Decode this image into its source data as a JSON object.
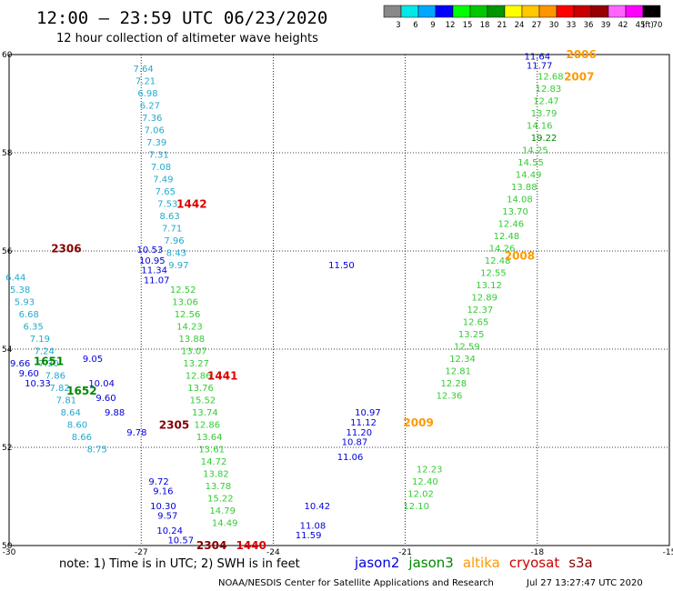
{
  "header": {
    "title": "12:00 – 23:59 UTC 06/23/2020",
    "subtitle": "12 hour collection of altimeter wave heights",
    "unit": "(ft)"
  },
  "colorbar": {
    "colors": [
      "#888888",
      "#00e8e8",
      "#00a8ff",
      "#0000ff",
      "#00ff00",
      "#00c800",
      "#009600",
      "#ffff00",
      "#ffc800",
      "#ff9600",
      "#ff0000",
      "#c80000",
      "#960000",
      "#ff64ff",
      "#ff00ff",
      "#000000"
    ],
    "labels": [
      "3",
      "6",
      "9",
      "12",
      "15",
      "18",
      "21",
      "24",
      "27",
      "30",
      "33",
      "36",
      "39",
      "42",
      "45",
      "70"
    ]
  },
  "footer": {
    "note": "note: 1) Time is in UTC; 2) SWH is in feet",
    "credit": "NOAA/NESDIS Center for Satellite Applications and Research",
    "stamp": "Jul 27 13:27:47 UTC 2020"
  },
  "legend": [
    {
      "label": "jason2",
      "color": "#0000dd"
    },
    {
      "label": "jason3",
      "color": "#008800"
    },
    {
      "label": "altika",
      "color": "#ff9900"
    },
    {
      "label": "cryosat",
      "color": "#cc0000"
    },
    {
      "label": "s3a",
      "color": "#880000"
    }
  ],
  "chart_data": {
    "type": "scatter",
    "title": "12:00 – 23:59 UTC 06/23/2020",
    "xlim": [
      -30,
      -15
    ],
    "ylim": [
      50,
      60
    ],
    "xticks": [
      -30,
      -27,
      -24,
      -21,
      -18,
      -15
    ],
    "yticks": [
      50,
      52,
      54,
      56,
      58,
      60
    ],
    "grid": true,
    "legend_position": "bottom",
    "series": [
      {
        "color": "#0000dd",
        "points": [
          {
            "x": -18.0,
            "y": 59.95,
            "v": "11.64"
          },
          {
            "x": -17.95,
            "y": 59.77,
            "v": "11.77"
          },
          {
            "x": -26.8,
            "y": 56.02,
            "v": "10.53"
          },
          {
            "x": -26.75,
            "y": 55.8,
            "v": "10.95"
          },
          {
            "x": -26.7,
            "y": 55.6,
            "v": "11.34"
          },
          {
            "x": -26.65,
            "y": 55.4,
            "v": "11.07"
          },
          {
            "x": -22.45,
            "y": 55.7,
            "v": "11.50"
          },
          {
            "x": -21.85,
            "y": 52.7,
            "v": "10.97"
          },
          {
            "x": -21.95,
            "y": 52.5,
            "v": "11.12"
          },
          {
            "x": -22.05,
            "y": 52.3,
            "v": "11.20"
          },
          {
            "x": -22.15,
            "y": 52.1,
            "v": "10.87"
          },
          {
            "x": -22.25,
            "y": 51.8,
            "v": "11.06"
          },
          {
            "x": -23.0,
            "y": 50.8,
            "v": "10.42"
          },
          {
            "x": -23.1,
            "y": 50.4,
            "v": "11.08"
          },
          {
            "x": -23.2,
            "y": 50.2,
            "v": "11.59"
          },
          {
            "x": -28.1,
            "y": 53.8,
            "v": "9.05"
          },
          {
            "x": -29.75,
            "y": 53.7,
            "v": "9.66"
          },
          {
            "x": -29.55,
            "y": 53.5,
            "v": "9.60"
          },
          {
            "x": -29.35,
            "y": 53.3,
            "v": "10.33"
          },
          {
            "x": -27.9,
            "y": 53.3,
            "v": "10.04"
          },
          {
            "x": -27.8,
            "y": 53.0,
            "v": "9.60"
          },
          {
            "x": -27.6,
            "y": 52.7,
            "v": "9.88"
          },
          {
            "x": -27.1,
            "y": 52.3,
            "v": "9.78"
          },
          {
            "x": -26.6,
            "y": 51.3,
            "v": "9.72"
          },
          {
            "x": -26.5,
            "y": 51.1,
            "v": "9.16"
          },
          {
            "x": -26.5,
            "y": 50.8,
            "v": "10.30"
          },
          {
            "x": -26.4,
            "y": 50.6,
            "v": "9.57"
          },
          {
            "x": -26.35,
            "y": 50.3,
            "v": "10.24"
          },
          {
            "x": -26.1,
            "y": 50.1,
            "v": "10.57"
          }
        ]
      },
      {
        "color": "#22aacc",
        "points": [
          {
            "x": -26.95,
            "y": 59.7,
            "v": "7.64"
          },
          {
            "x": -26.9,
            "y": 59.45,
            "v": "7.21"
          },
          {
            "x": -26.85,
            "y": 59.2,
            "v": "6.98"
          },
          {
            "x": -26.8,
            "y": 58.95,
            "v": "6.27"
          },
          {
            "x": -26.75,
            "y": 58.7,
            "v": "7.36"
          },
          {
            "x": -26.7,
            "y": 58.45,
            "v": "7.06"
          },
          {
            "x": -26.65,
            "y": 58.2,
            "v": "7.39"
          },
          {
            "x": -26.6,
            "y": 57.95,
            "v": "7.31"
          },
          {
            "x": -26.55,
            "y": 57.7,
            "v": "7.08"
          },
          {
            "x": -26.5,
            "y": 57.45,
            "v": "7.49"
          },
          {
            "x": -26.45,
            "y": 57.2,
            "v": "7.65"
          },
          {
            "x": -26.4,
            "y": 56.95,
            "v": "7.53"
          },
          {
            "x": -26.35,
            "y": 56.7,
            "v": "8.63"
          },
          {
            "x": -26.3,
            "y": 56.45,
            "v": "7.71"
          },
          {
            "x": -26.25,
            "y": 56.2,
            "v": "7.96"
          },
          {
            "x": -26.2,
            "y": 55.95,
            "v": "8.43"
          },
          {
            "x": -26.15,
            "y": 55.7,
            "v": "9.97"
          },
          {
            "x": -29.85,
            "y": 55.45,
            "v": "6.44"
          },
          {
            "x": -29.75,
            "y": 55.2,
            "v": "5.38"
          },
          {
            "x": -29.65,
            "y": 54.95,
            "v": "5.93"
          },
          {
            "x": -29.55,
            "y": 54.7,
            "v": "6.68"
          },
          {
            "x": -29.45,
            "y": 54.45,
            "v": "6.35"
          },
          {
            "x": -29.3,
            "y": 54.2,
            "v": "7.19"
          },
          {
            "x": -29.2,
            "y": 53.95,
            "v": "7.24"
          },
          {
            "x": -29.1,
            "y": 53.7,
            "v": "7.30"
          },
          {
            "x": -28.95,
            "y": 53.45,
            "v": "7.86"
          },
          {
            "x": -28.85,
            "y": 53.2,
            "v": "7.82"
          },
          {
            "x": -28.7,
            "y": 52.95,
            "v": "7.81"
          },
          {
            "x": -28.6,
            "y": 52.7,
            "v": "8.64"
          },
          {
            "x": -28.45,
            "y": 52.45,
            "v": "8.60"
          },
          {
            "x": -28.35,
            "y": 52.2,
            "v": "8.66"
          },
          {
            "x": -28.0,
            "y": 51.95,
            "v": "8.75"
          }
        ]
      },
      {
        "color": "#33cc33",
        "points": [
          {
            "x": -17.7,
            "y": 59.55,
            "v": "12.68"
          },
          {
            "x": -17.75,
            "y": 59.3,
            "v": "12.83"
          },
          {
            "x": -17.8,
            "y": 59.05,
            "v": "12.47"
          },
          {
            "x": -17.85,
            "y": 58.8,
            "v": "13.79"
          },
          {
            "x": -17.95,
            "y": 58.55,
            "v": "14.16"
          },
          {
            "x": -18.05,
            "y": 58.05,
            "v": "14.25"
          },
          {
            "x": -18.15,
            "y": 57.8,
            "v": "14.55"
          },
          {
            "x": -18.2,
            "y": 57.55,
            "v": "14.49"
          },
          {
            "x": -18.3,
            "y": 57.3,
            "v": "13.88"
          },
          {
            "x": -18.4,
            "y": 57.05,
            "v": "14.08"
          },
          {
            "x": -18.5,
            "y": 56.8,
            "v": "13.70"
          },
          {
            "x": -18.6,
            "y": 56.55,
            "v": "12.46"
          },
          {
            "x": -18.7,
            "y": 56.3,
            "v": "12.48"
          },
          {
            "x": -18.8,
            "y": 56.05,
            "v": "14.26"
          },
          {
            "x": -18.9,
            "y": 55.8,
            "v": "12.48"
          },
          {
            "x": -19.0,
            "y": 55.55,
            "v": "12.55"
          },
          {
            "x": -19.1,
            "y": 55.3,
            "v": "13.12"
          },
          {
            "x": -19.2,
            "y": 55.05,
            "v": "12.89"
          },
          {
            "x": -19.3,
            "y": 54.8,
            "v": "12.37"
          },
          {
            "x": -19.4,
            "y": 54.55,
            "v": "12.65"
          },
          {
            "x": -19.5,
            "y": 54.3,
            "v": "13.25"
          },
          {
            "x": -19.6,
            "y": 54.05,
            "v": "12.59"
          },
          {
            "x": -19.7,
            "y": 53.8,
            "v": "12.34"
          },
          {
            "x": -19.8,
            "y": 53.55,
            "v": "12.81"
          },
          {
            "x": -19.9,
            "y": 53.3,
            "v": "12.28"
          },
          {
            "x": -20.0,
            "y": 53.05,
            "v": "12.36"
          },
          {
            "x": -20.45,
            "y": 51.55,
            "v": "12.23"
          },
          {
            "x": -20.55,
            "y": 51.3,
            "v": "12.40"
          },
          {
            "x": -20.65,
            "y": 51.05,
            "v": "12.02"
          },
          {
            "x": -20.75,
            "y": 50.8,
            "v": "12.10"
          },
          {
            "x": -26.05,
            "y": 55.2,
            "v": "12.52"
          },
          {
            "x": -26.0,
            "y": 54.95,
            "v": "13.06"
          },
          {
            "x": -25.95,
            "y": 54.7,
            "v": "12.56"
          },
          {
            "x": -25.9,
            "y": 54.45,
            "v": "14.23"
          },
          {
            "x": -25.85,
            "y": 54.2,
            "v": "13.88"
          },
          {
            "x": -25.8,
            "y": 53.95,
            "v": "13.07"
          },
          {
            "x": -25.75,
            "y": 53.7,
            "v": "13.27"
          },
          {
            "x": -25.7,
            "y": 53.45,
            "v": "12.86"
          },
          {
            "x": -25.65,
            "y": 53.2,
            "v": "13.76"
          },
          {
            "x": -25.6,
            "y": 52.95,
            "v": "15.52"
          },
          {
            "x": -25.55,
            "y": 52.7,
            "v": "13.74"
          },
          {
            "x": -25.5,
            "y": 52.45,
            "v": "12.86"
          },
          {
            "x": -25.45,
            "y": 52.2,
            "v": "13.64"
          },
          {
            "x": -25.4,
            "y": 51.95,
            "v": "13.61"
          },
          {
            "x": -25.35,
            "y": 51.7,
            "v": "14.72"
          },
          {
            "x": -25.3,
            "y": 51.45,
            "v": "13.82"
          },
          {
            "x": -25.25,
            "y": 51.2,
            "v": "13.78"
          },
          {
            "x": -25.2,
            "y": 50.95,
            "v": "15.22"
          },
          {
            "x": -25.15,
            "y": 50.7,
            "v": "14.79"
          },
          {
            "x": -25.1,
            "y": 50.45,
            "v": "14.49"
          }
        ]
      },
      {
        "color": "#008800",
        "points": [
          {
            "x": -17.85,
            "y": 58.3,
            "v": "19.22"
          }
        ]
      }
    ],
    "time_labels": [
      {
        "x": -17.0,
        "y": 60.0,
        "text": "2006",
        "color": "#ff9900"
      },
      {
        "x": -17.05,
        "y": 59.55,
        "text": "2007",
        "color": "#ff9900"
      },
      {
        "x": -18.4,
        "y": 55.9,
        "text": "2008",
        "color": "#ff9900"
      },
      {
        "x": -20.7,
        "y": 52.5,
        "text": "2009",
        "color": "#ff9900"
      },
      {
        "x": -25.85,
        "y": 56.95,
        "text": "1442",
        "color": "#dd0000"
      },
      {
        "x": -25.15,
        "y": 53.45,
        "text": "1441",
        "color": "#dd0000"
      },
      {
        "x": -28.7,
        "y": 56.05,
        "text": "2306",
        "color": "#880000"
      },
      {
        "x": -26.25,
        "y": 52.45,
        "text": "2305",
        "color": "#880000"
      },
      {
        "x": -25.4,
        "y": 50.0,
        "text": "2304",
        "color": "#880000"
      },
      {
        "x": -24.5,
        "y": 50.0,
        "text": "1440",
        "color": "#dd0000"
      },
      {
        "x": -29.1,
        "y": 53.75,
        "text": "1651",
        "color": "#008800"
      },
      {
        "x": -28.35,
        "y": 53.15,
        "text": "1652",
        "color": "#008800"
      }
    ]
  }
}
